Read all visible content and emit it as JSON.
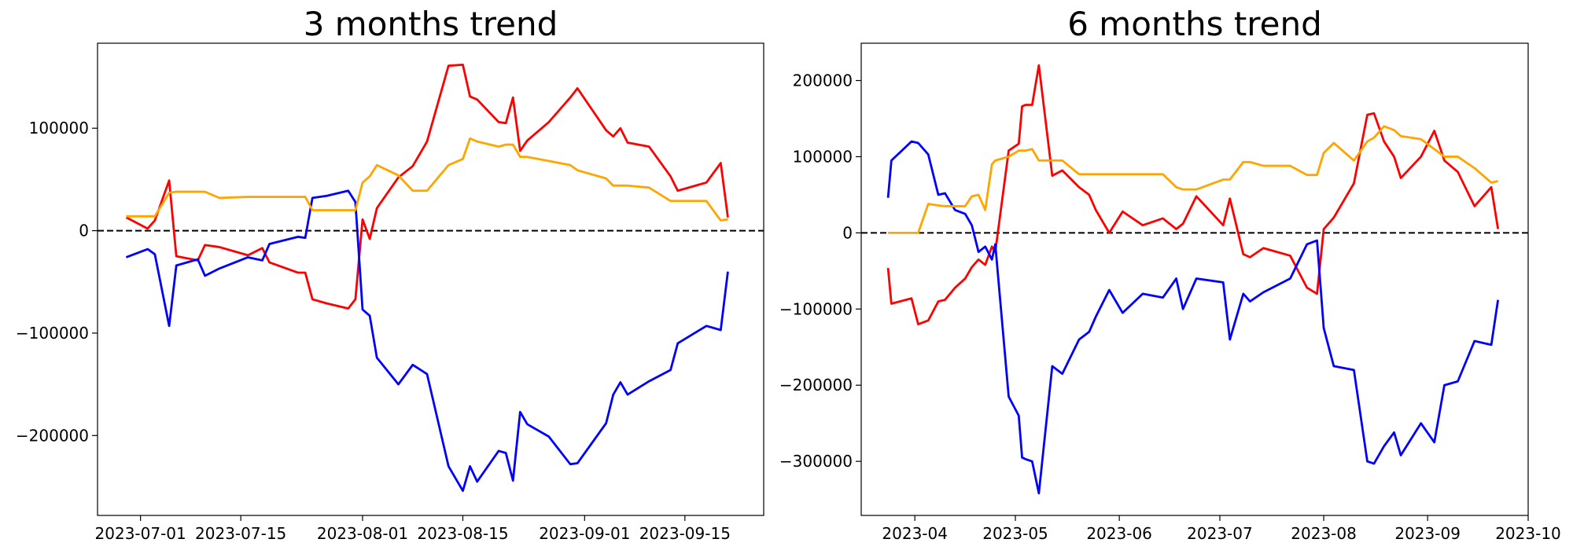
{
  "chart_data": [
    {
      "type": "line",
      "title": "3 months trend",
      "x": [
        "2023-06-29",
        "2023-07-02",
        "2023-07-03",
        "2023-07-05",
        "2023-07-06",
        "2023-07-09",
        "2023-07-10",
        "2023-07-12",
        "2023-07-16",
        "2023-07-18",
        "2023-07-19",
        "2023-07-23",
        "2023-07-24",
        "2023-07-25",
        "2023-07-27",
        "2023-07-30",
        "2023-07-31",
        "2023-08-01",
        "2023-08-02",
        "2023-08-03",
        "2023-08-06",
        "2023-08-08",
        "2023-08-10",
        "2023-08-13",
        "2023-08-15",
        "2023-08-16",
        "2023-08-17",
        "2023-08-20",
        "2023-08-21",
        "2023-08-22",
        "2023-08-23",
        "2023-08-24",
        "2023-08-27",
        "2023-08-30",
        "2023-08-31",
        "2023-09-04",
        "2023-09-05",
        "2023-09-06",
        "2023-09-07",
        "2023-09-10",
        "2023-09-13",
        "2023-09-14",
        "2023-09-18",
        "2023-09-20",
        "2023-09-21"
      ],
      "series": [
        {
          "color": "red",
          "values": [
            13000,
            2000,
            10000,
            49000,
            -25000,
            -29000,
            -14000,
            -16000,
            -24000,
            -17000,
            -31000,
            -41000,
            -41000,
            -67000,
            -71000,
            -76000,
            -67000,
            11000,
            -8000,
            22000,
            52000,
            63000,
            87000,
            161000,
            162000,
            131000,
            128000,
            106000,
            105000,
            130000,
            78000,
            88000,
            106000,
            130000,
            139000,
            98000,
            92000,
            100000,
            86000,
            82000,
            53000,
            39000,
            47000,
            66000,
            13000
          ]
        },
        {
          "color": "blue",
          "values": [
            -26000,
            -18000,
            -23000,
            -93000,
            -34000,
            -28000,
            -44000,
            -37000,
            -26000,
            -29000,
            -13000,
            -6000,
            -7000,
            32000,
            34000,
            39000,
            28000,
            -77000,
            -83000,
            -124000,
            -150000,
            -131000,
            -140000,
            -230000,
            -254000,
            -230000,
            -245000,
            -215000,
            -217000,
            -244000,
            -177000,
            -189000,
            -201000,
            -228000,
            -227000,
            -188000,
            -160000,
            -148000,
            -160000,
            -147000,
            -136000,
            -110000,
            -93000,
            -97000,
            -40000
          ]
        },
        {
          "color": "orange",
          "values": [
            14000,
            14000,
            14000,
            37000,
            38000,
            38000,
            38000,
            32000,
            33000,
            33000,
            33000,
            33000,
            33000,
            20000,
            20000,
            20000,
            20000,
            47000,
            53000,
            64000,
            54000,
            39000,
            39000,
            64000,
            70000,
            90000,
            87000,
            82000,
            84000,
            84000,
            72000,
            72000,
            68000,
            64000,
            59000,
            51000,
            44000,
            44000,
            44000,
            42000,
            29000,
            29000,
            29000,
            10000,
            11000
          ]
        }
      ],
      "xlim": [
        "2023-06-25",
        "2023-09-26"
      ],
      "xticks": [
        "2023-07-01",
        "2023-07-15",
        "2023-08-01",
        "2023-08-15",
        "2023-09-01",
        "2023-09-15"
      ],
      "ylim": [
        -278000,
        183000
      ],
      "yticks": [
        {
          "value": -200000,
          "label": "−200000"
        },
        {
          "value": -100000,
          "label": "−100000"
        },
        0,
        100000
      ],
      "reference_line": {
        "y": 0,
        "style": "dashed",
        "color": "black"
      }
    },
    {
      "type": "line",
      "title": "6 months trend",
      "x": [
        "2023-03-24",
        "2023-03-25",
        "2023-03-31",
        "2023-04-02",
        "2023-04-05",
        "2023-04-08",
        "2023-04-10",
        "2023-04-13",
        "2023-04-16",
        "2023-04-18",
        "2023-04-20",
        "2023-04-22",
        "2023-04-24",
        "2023-04-25",
        "2023-04-29",
        "2023-05-02",
        "2023-05-03",
        "2023-05-04",
        "2023-05-06",
        "2023-05-08",
        "2023-05-12",
        "2023-05-15",
        "2023-05-20",
        "2023-05-23",
        "2023-05-25",
        "2023-05-29",
        "2023-06-02",
        "2023-06-08",
        "2023-06-14",
        "2023-06-18",
        "2023-06-20",
        "2023-06-24",
        "2023-07-02",
        "2023-07-04",
        "2023-07-08",
        "2023-07-10",
        "2023-07-14",
        "2023-07-22",
        "2023-07-27",
        "2023-07-30",
        "2023-08-01",
        "2023-08-04",
        "2023-08-10",
        "2023-08-14",
        "2023-08-16",
        "2023-08-19",
        "2023-08-22",
        "2023-08-24",
        "2023-08-30",
        "2023-09-03",
        "2023-09-06",
        "2023-09-10",
        "2023-09-15",
        "2023-09-20",
        "2023-09-22"
      ],
      "series": [
        {
          "color": "red",
          "values": [
            -46000,
            -93000,
            -86000,
            -120000,
            -115000,
            -90000,
            -88000,
            -72000,
            -60000,
            -45000,
            -35000,
            -42000,
            -18000,
            -25000,
            108000,
            117000,
            166000,
            168000,
            168000,
            220000,
            75000,
            82000,
            60000,
            50000,
            30000,
            0,
            28000,
            10000,
            19000,
            5000,
            12000,
            48000,
            10000,
            45000,
            -28000,
            -32000,
            -20000,
            -30000,
            -72000,
            -80000,
            5000,
            20000,
            65000,
            155000,
            157000,
            120000,
            100000,
            72000,
            100000,
            134000,
            95000,
            80000,
            35000,
            60000,
            5000
          ]
        },
        {
          "color": "blue",
          "values": [
            46000,
            95000,
            120000,
            118000,
            103000,
            50000,
            52000,
            30000,
            25000,
            10000,
            -25000,
            -18000,
            -35000,
            -15000,
            -215000,
            -240000,
            -295000,
            -297000,
            -300000,
            -342000,
            -175000,
            -185000,
            -140000,
            -130000,
            -110000,
            -75000,
            -105000,
            -80000,
            -85000,
            -60000,
            -100000,
            -60000,
            -65000,
            -140000,
            -80000,
            -90000,
            -78000,
            -60000,
            -15000,
            -10000,
            -125000,
            -175000,
            -180000,
            -300000,
            -303000,
            -280000,
            -262000,
            -292000,
            -250000,
            -275000,
            -200000,
            -195000,
            -142000,
            -147000,
            -88000
          ]
        },
        {
          "color": "orange",
          "values": [
            0,
            0,
            0,
            0,
            38000,
            36000,
            35000,
            35000,
            35000,
            48000,
            50000,
            30000,
            90000,
            95000,
            100000,
            108000,
            108000,
            108000,
            110000,
            95000,
            95000,
            95000,
            77000,
            77000,
            77000,
            77000,
            77000,
            77000,
            77000,
            60000,
            57000,
            57000,
            70000,
            70000,
            93000,
            93000,
            88000,
            88000,
            76000,
            76000,
            105000,
            118000,
            95000,
            120000,
            125000,
            140000,
            135000,
            127000,
            123000,
            110000,
            100000,
            100000,
            85000,
            66000,
            68000
          ]
        }
      ],
      "xlim": [
        "2023-03-16",
        "2023-10-01"
      ],
      "xticks": [
        {
          "value": "2023-04-01",
          "label": "2023-04"
        },
        {
          "value": "2023-05-01",
          "label": "2023-05"
        },
        {
          "value": "2023-06-01",
          "label": "2023-06"
        },
        {
          "value": "2023-07-01",
          "label": "2023-07"
        },
        {
          "value": "2023-08-01",
          "label": "2023-08"
        },
        {
          "value": "2023-09-01",
          "label": "2023-09"
        },
        {
          "value": "2023-10-01",
          "label": "2023-10"
        }
      ],
      "ylim": [
        -371000,
        249000
      ],
      "yticks": [
        {
          "value": -300000,
          "label": "−300000"
        },
        {
          "value": -200000,
          "label": "−200000"
        },
        {
          "value": -100000,
          "label": "−100000"
        },
        0,
        100000,
        200000
      ],
      "reference_line": {
        "y": 0,
        "style": "dashed",
        "color": "black"
      }
    }
  ]
}
